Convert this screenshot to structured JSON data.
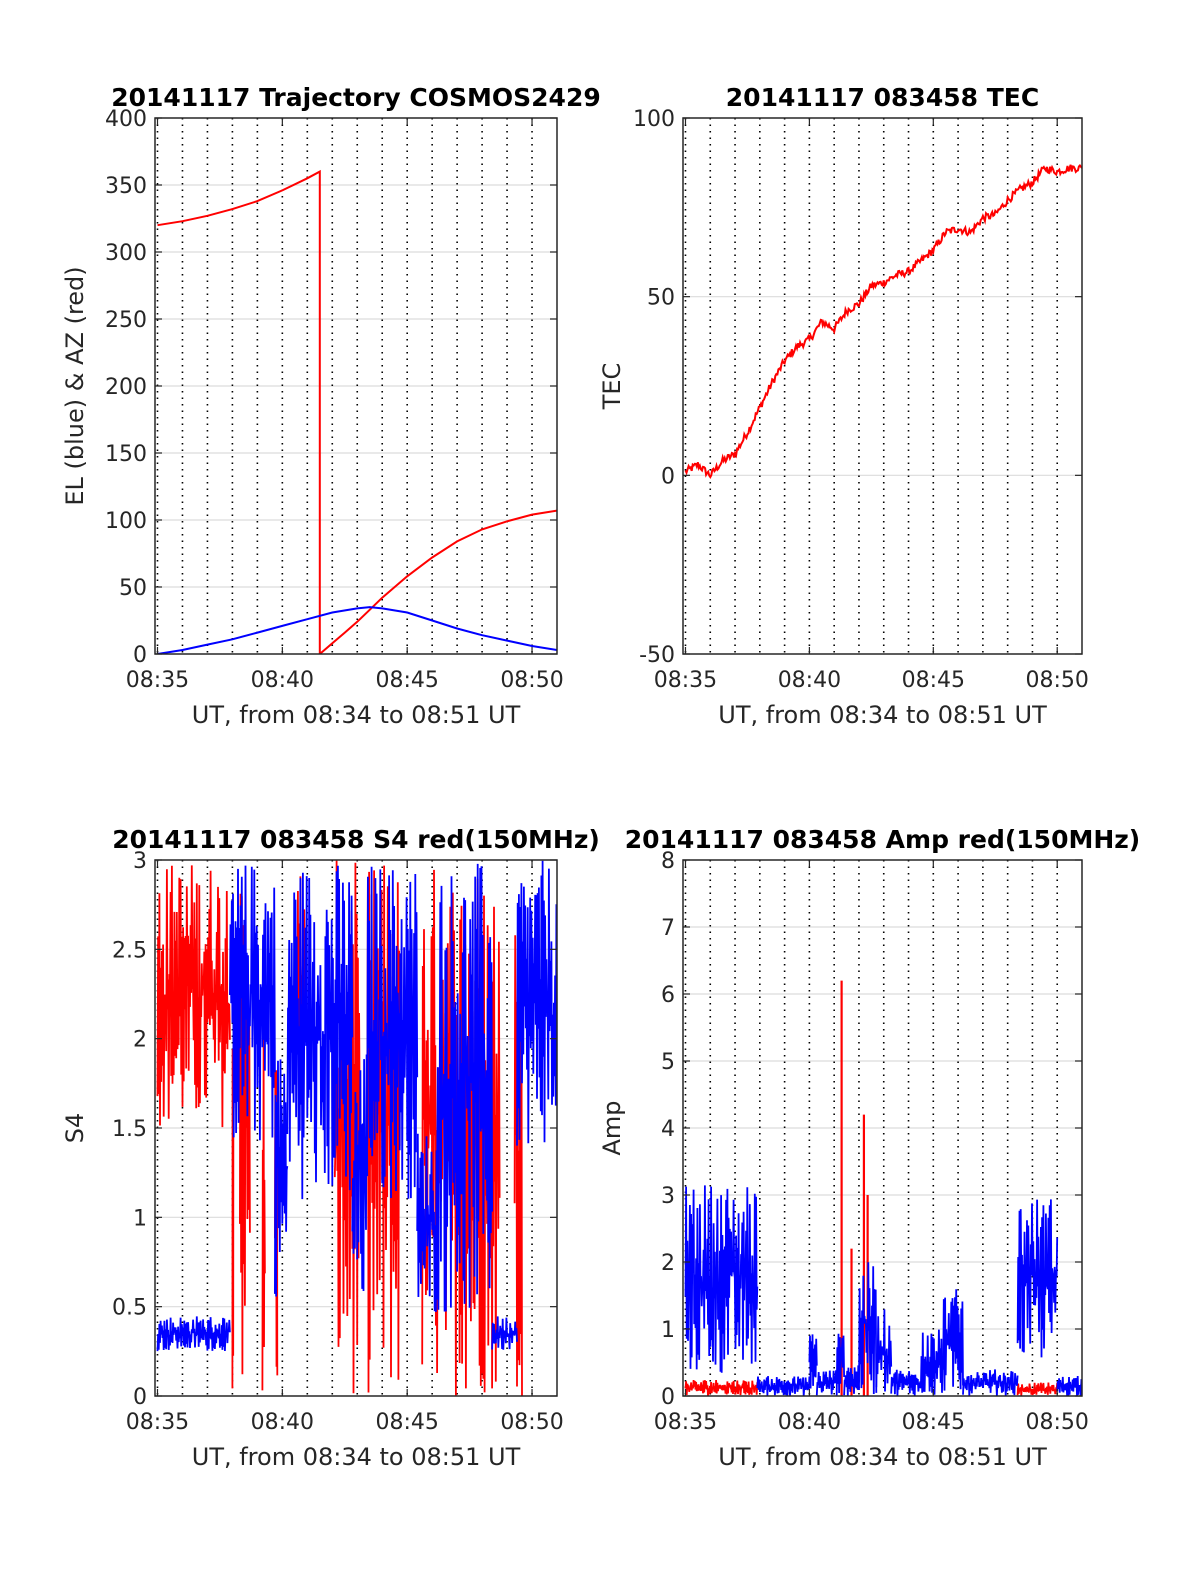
{
  "colors": {
    "red": "#ff0000",
    "blue": "#0000ff",
    "grid": "#dcdcdc",
    "axis": "#262626"
  },
  "chart_data": [
    {
      "type": "line",
      "title": "20141117 Trajectory COSMOS2429",
      "xlabel": "UT, from 08:34 to 08:51 UT",
      "ylabel": "EL (blue) & AZ (red)",
      "x_unit": "minutes past 08:00",
      "xlim": [
        34.9,
        51.0
      ],
      "ylim": [
        0,
        400
      ],
      "yticks": [
        0,
        50,
        100,
        150,
        200,
        250,
        300,
        350,
        400
      ],
      "ytick_labels": [
        "0",
        "50",
        "100",
        "150",
        "200",
        "250",
        "300",
        "350",
        "400"
      ],
      "xticks": [
        35,
        40,
        45,
        50
      ],
      "xtick_labels": [
        "08:35",
        "08:40",
        "08:45",
        "08:50"
      ],
      "minor_dotted_x": [
        35,
        36,
        37,
        38,
        39,
        40,
        41,
        42,
        43,
        44,
        45,
        46,
        47,
        48,
        49,
        50
      ],
      "series": [
        {
          "color": "red",
          "style": "line",
          "x": [
            35.0,
            36.0,
            37.0,
            38.0,
            39.0,
            40.0,
            41.0,
            41.5,
            41.5,
            42.0,
            42.5,
            43.0,
            43.5,
            44.0,
            44.5,
            45.0,
            46.0,
            47.0,
            48.0,
            49.0,
            50.0,
            51.0
          ],
          "y": [
            320,
            323,
            327,
            332,
            338,
            346,
            355,
            360,
            0,
            8,
            16,
            24,
            33,
            42,
            50,
            58,
            72,
            84,
            93,
            99,
            104,
            107
          ]
        },
        {
          "color": "blue",
          "style": "line",
          "x": [
            35.0,
            36.0,
            37.0,
            38.0,
            39.0,
            40.0,
            41.0,
            42.0,
            43.0,
            43.5,
            44.0,
            45.0,
            46.0,
            47.0,
            48.0,
            49.0,
            50.0,
            51.0
          ],
          "y": [
            0,
            3,
            7,
            11,
            16,
            21,
            26,
            31,
            34,
            35,
            34,
            31,
            25,
            19,
            14,
            10,
            6,
            3
          ]
        }
      ]
    },
    {
      "type": "line",
      "title": "20141117 083458 TEC",
      "xlabel": "UT, from 08:34 to 08:51 UT",
      "ylabel": "TEC",
      "x_unit": "minutes past 08:00",
      "xlim": [
        34.9,
        51.0
      ],
      "ylim": [
        -50,
        100
      ],
      "yticks": [
        -50,
        0,
        50,
        100
      ],
      "ytick_labels": [
        "-50",
        "0",
        "50",
        "100"
      ],
      "xticks": [
        35,
        40,
        45,
        50
      ],
      "xtick_labels": [
        "08:35",
        "08:40",
        "08:45",
        "08:50"
      ],
      "minor_dotted_x": [
        35,
        36,
        37,
        38,
        39,
        40,
        41,
        42,
        43,
        44,
        45,
        46,
        47,
        48,
        49,
        50
      ],
      "series": [
        {
          "color": "red",
          "style": "line",
          "x": [
            35.0,
            35.5,
            36.0,
            36.5,
            37.0,
            37.5,
            38.0,
            38.5,
            39.0,
            39.5,
            40.0,
            40.5,
            41.0,
            41.5,
            42.0,
            42.5,
            43.0,
            43.5,
            44.0,
            44.5,
            45.0,
            45.5,
            46.0,
            46.5,
            47.0,
            47.5,
            48.0,
            48.5,
            49.0,
            49.5,
            50.0,
            50.5,
            51.0
          ],
          "y": [
            1,
            3,
            0,
            4,
            6,
            12,
            19,
            26,
            32,
            36,
            38,
            43,
            41,
            46,
            48,
            53,
            54,
            56,
            57,
            60,
            63,
            68,
            69,
            68,
            72,
            73,
            77,
            80,
            82,
            86,
            85,
            86,
            86
          ]
        }
      ]
    },
    {
      "type": "line",
      "title": "20141117 083458 S4 red(150MHz)",
      "xlabel": "UT, from 08:34 to 08:51 UT",
      "ylabel": "S4",
      "x_unit": "minutes past 08:00",
      "xlim": [
        34.9,
        51.0
      ],
      "ylim": [
        0,
        3
      ],
      "yticks": [
        0,
        0.5,
        1,
        1.5,
        2,
        2.5,
        3
      ],
      "ytick_labels": [
        "0",
        "0.5",
        "1",
        "1.5",
        "2",
        "2.5",
        "3"
      ],
      "xticks": [
        35,
        40,
        45,
        50
      ],
      "xtick_labels": [
        "08:35",
        "08:40",
        "08:45",
        "08:50"
      ],
      "minor_dotted_x": [
        35,
        36,
        37,
        38,
        39,
        40,
        41,
        42,
        43,
        44,
        45,
        46,
        47,
        48,
        49,
        50
      ],
      "series": [
        {
          "color": "red",
          "style": "noise",
          "segments": [
            {
              "x": [
                35.0,
                37.9
              ],
              "y": [
                1.5,
                3.0
              ]
            },
            {
              "x": [
                38.0,
                38.05
              ],
              "y": [
                0,
                3.0
              ]
            },
            {
              "x": [
                38.3,
                38.7
              ],
              "y": [
                0,
                3.0
              ]
            },
            {
              "x": [
                39.2,
                39.3
              ],
              "y": [
                0,
                2.2
              ]
            },
            {
              "x": [
                39.7,
                39.8
              ],
              "y": [
                0,
                2.0
              ]
            },
            {
              "x": [
                40.6,
                40.9
              ],
              "y": [
                1.5,
                3.0
              ]
            },
            {
              "x": [
                42.1,
                43.1
              ],
              "y": [
                0,
                3.0
              ]
            },
            {
              "x": [
                43.4,
                44.7
              ],
              "y": [
                0,
                3.0
              ]
            },
            {
              "x": [
                45.6,
                48.7
              ],
              "y": [
                0,
                3.0
              ]
            },
            {
              "x": [
                49.3,
                49.6
              ],
              "y": [
                0,
                3.0
              ]
            }
          ]
        },
        {
          "color": "blue",
          "style": "noise",
          "segments": [
            {
              "x": [
                35.0,
                37.9
              ],
              "y": [
                0.25,
                0.45
              ]
            },
            {
              "x": [
                37.9,
                39.7
              ],
              "y": [
                1.4,
                3.0
              ]
            },
            {
              "x": [
                39.7,
                40.2
              ],
              "y": [
                0.55,
                2.0
              ]
            },
            {
              "x": [
                40.2,
                42.8
              ],
              "y": [
                1.1,
                3.0
              ]
            },
            {
              "x": [
                42.8,
                43.4
              ],
              "y": [
                0.45,
                2.0
              ]
            },
            {
              "x": [
                43.4,
                45.4
              ],
              "y": [
                1.1,
                3.0
              ]
            },
            {
              "x": [
                45.4,
                46.2
              ],
              "y": [
                0.45,
                1.5
              ]
            },
            {
              "x": [
                46.2,
                48.4
              ],
              "y": [
                0.45,
                3.0
              ]
            },
            {
              "x": [
                48.4,
                49.4
              ],
              "y": [
                0.25,
                0.45
              ]
            },
            {
              "x": [
                49.4,
                51.0
              ],
              "y": [
                1.4,
                3.0
              ]
            }
          ]
        }
      ]
    },
    {
      "type": "line",
      "title": "20141117 083458 Amp red(150MHz)",
      "xlabel": "UT, from 08:34 to 08:51 UT",
      "ylabel": "Amp",
      "x_unit": "minutes past 08:00",
      "xlim": [
        34.9,
        51.0
      ],
      "ylim": [
        0,
        8
      ],
      "yticks": [
        0,
        1,
        2,
        3,
        4,
        5,
        6,
        7,
        8
      ],
      "ytick_labels": [
        "0",
        "1",
        "2",
        "3",
        "4",
        "5",
        "6",
        "7",
        "8"
      ],
      "xticks": [
        35,
        40,
        45,
        50
      ],
      "xtick_labels": [
        "08:35",
        "08:40",
        "08:45",
        "08:50"
      ],
      "minor_dotted_x": [
        35,
        36,
        37,
        38,
        39,
        40,
        41,
        42,
        43,
        44,
        45,
        46,
        47,
        48,
        49,
        50
      ],
      "series": [
        {
          "color": "red",
          "style": "noise",
          "segments": [
            {
              "x": [
                35.0,
                37.9
              ],
              "y": [
                0.0,
                0.25
              ]
            },
            {
              "x": [
                48.4,
                50.0
              ],
              "y": [
                0.0,
                0.2
              ]
            }
          ],
          "spikes": [
            {
              "x": 41.3,
              "y": 6.2
            },
            {
              "x": 41.7,
              "y": 2.2
            },
            {
              "x": 42.2,
              "y": 4.2
            },
            {
              "x": 42.35,
              "y": 3.0
            }
          ]
        },
        {
          "color": "blue",
          "style": "noise",
          "segments": [
            {
              "x": [
                35.0,
                37.9
              ],
              "y": [
                0.3,
                3.2
              ]
            },
            {
              "x": [
                37.9,
                40.0
              ],
              "y": [
                0.0,
                0.3
              ]
            },
            {
              "x": [
                40.0,
                40.3
              ],
              "y": [
                0.0,
                1.0
              ]
            },
            {
              "x": [
                40.3,
                41.1
              ],
              "y": [
                0.0,
                0.4
              ]
            },
            {
              "x": [
                41.1,
                41.4
              ],
              "y": [
                0.0,
                1.0
              ]
            },
            {
              "x": [
                41.4,
                42.0
              ],
              "y": [
                0.0,
                0.5
              ]
            },
            {
              "x": [
                42.0,
                42.7
              ],
              "y": [
                0.0,
                2.0
              ]
            },
            {
              "x": [
                42.7,
                43.3
              ],
              "y": [
                0.0,
                1.3
              ]
            },
            {
              "x": [
                43.3,
                44.5
              ],
              "y": [
                0.0,
                0.4
              ]
            },
            {
              "x": [
                44.5,
                45.4
              ],
              "y": [
                0.0,
                1.0
              ]
            },
            {
              "x": [
                45.4,
                46.2
              ],
              "y": [
                0.0,
                1.6
              ]
            },
            {
              "x": [
                46.2,
                48.4
              ],
              "y": [
                0.0,
                0.4
              ]
            },
            {
              "x": [
                48.4,
                50.0
              ],
              "y": [
                0.5,
                3.0
              ]
            },
            {
              "x": [
                50.0,
                51.0
              ],
              "y": [
                0.0,
                0.3
              ]
            }
          ]
        }
      ]
    }
  ]
}
